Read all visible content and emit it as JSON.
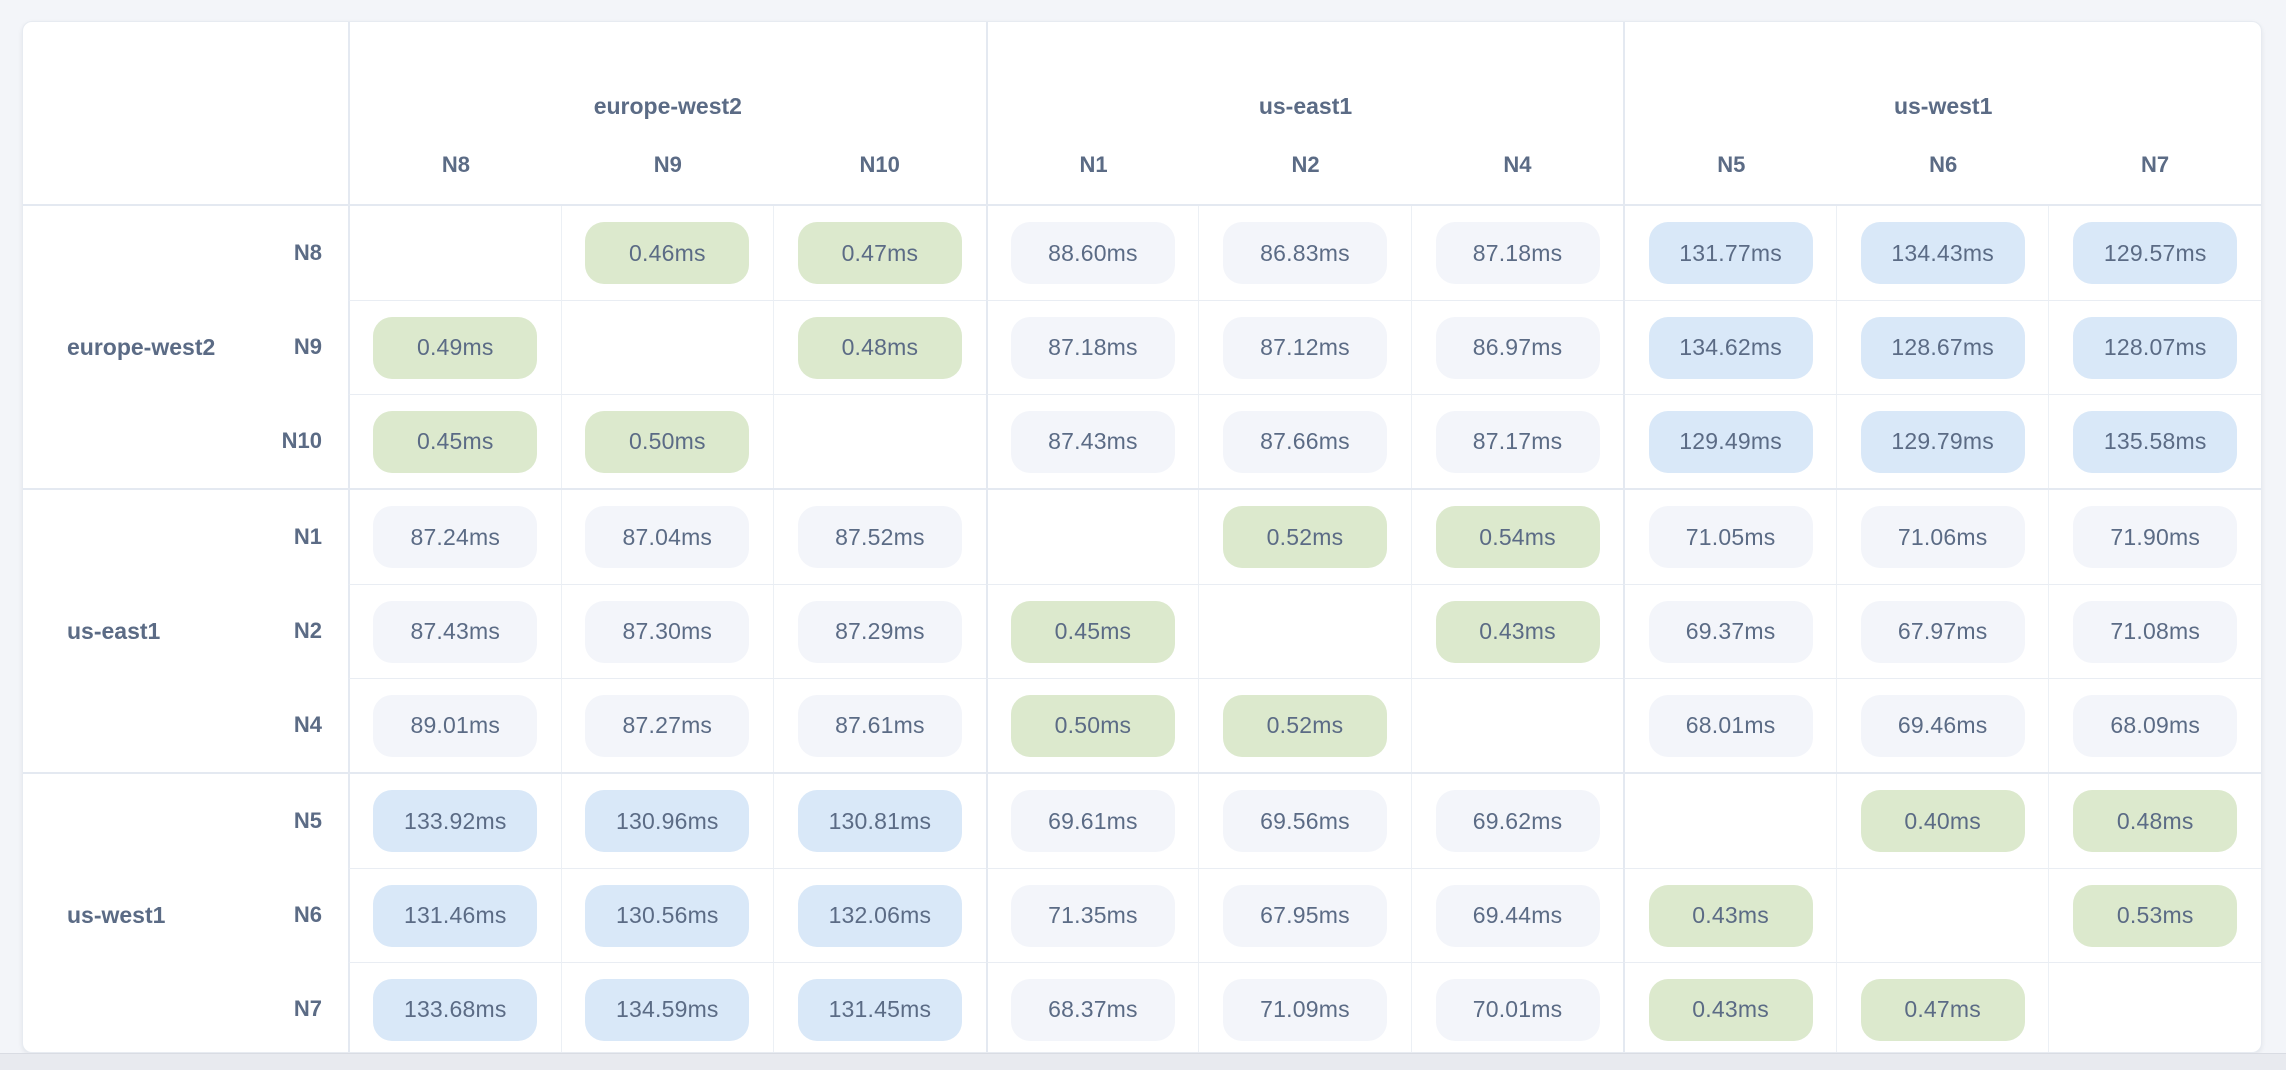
{
  "palette": {
    "page_bg": "#f3f5f9",
    "card_bg": "#ffffff",
    "grid_border": "#e4e9f1",
    "col_border": "#ecf0f5",
    "row_border": "#e9edf3",
    "text": "#5b6b85",
    "pill_low": "#dce9cd",
    "pill_mid": "#f3f5fa",
    "pill_high": "#d9e8f8"
  },
  "regions": [
    {
      "name": "europe-west2",
      "nodes": [
        "N8",
        "N9",
        "N10"
      ]
    },
    {
      "name": "us-east1",
      "nodes": [
        "N1",
        "N2",
        "N4"
      ]
    },
    {
      "name": "us-west1",
      "nodes": [
        "N5",
        "N6",
        "N7"
      ]
    }
  ],
  "thresholds": {
    "low_max_ms": 1,
    "high_min_ms": 100
  },
  "unit_suffix": "ms",
  "chart_data": {
    "type": "heatmap",
    "unit": "ms",
    "x_group_labels": [
      "europe-west2",
      "us-east1",
      "us-west1"
    ],
    "x_labels": [
      "N8",
      "N9",
      "N10",
      "N1",
      "N2",
      "N4",
      "N5",
      "N6",
      "N7"
    ],
    "y_group_labels": [
      "europe-west2",
      "us-east1",
      "us-west1"
    ],
    "y_labels": [
      "N8",
      "N9",
      "N10",
      "N1",
      "N2",
      "N4",
      "N5",
      "N6",
      "N7"
    ],
    "values_ms": [
      [
        null,
        0.46,
        0.47,
        88.6,
        86.83,
        87.18,
        131.77,
        134.43,
        129.57
      ],
      [
        0.49,
        null,
        0.48,
        87.18,
        87.12,
        86.97,
        134.62,
        128.67,
        128.07
      ],
      [
        0.45,
        0.5,
        null,
        87.43,
        87.66,
        87.17,
        129.49,
        129.79,
        135.58
      ],
      [
        87.24,
        87.04,
        87.52,
        null,
        0.52,
        0.54,
        71.05,
        71.06,
        71.9
      ],
      [
        87.43,
        87.3,
        87.29,
        0.45,
        null,
        0.43,
        69.37,
        67.97,
        71.08
      ],
      [
        89.01,
        87.27,
        87.61,
        0.5,
        0.52,
        null,
        68.01,
        69.46,
        68.09
      ],
      [
        133.92,
        130.96,
        130.81,
        69.61,
        69.56,
        69.62,
        null,
        0.4,
        0.48
      ],
      [
        131.46,
        130.56,
        132.06,
        71.35,
        67.95,
        69.44,
        0.43,
        null,
        0.53
      ],
      [
        133.68,
        134.59,
        131.45,
        68.37,
        71.09,
        70.01,
        0.43,
        0.47,
        null
      ]
    ]
  }
}
